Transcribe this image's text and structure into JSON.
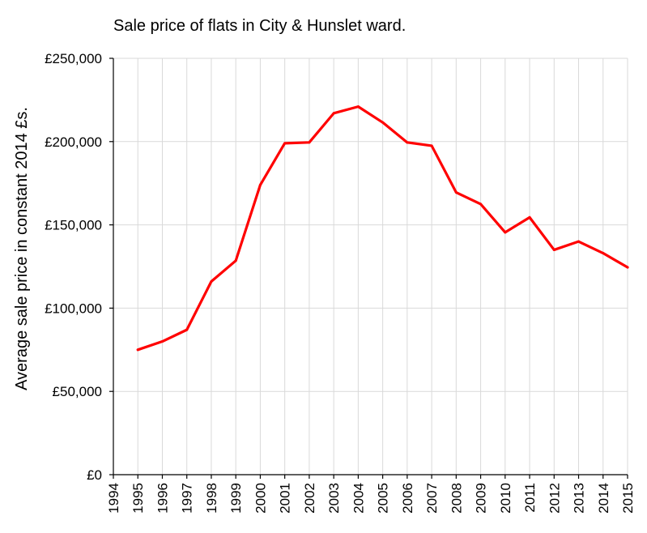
{
  "chart_data": {
    "type": "line",
    "title": "Sale price of flats in City & Hunslet ward.",
    "xlabel": "",
    "ylabel": "Average sale price in constant 2014 £s.",
    "categories": [
      "1994",
      "1995",
      "1996",
      "1997",
      "1998",
      "1999",
      "2000",
      "2001",
      "2002",
      "2003",
      "2004",
      "2005",
      "2006",
      "2007",
      "2008",
      "2009",
      "2010",
      "2011",
      "2012",
      "2013",
      "2014",
      "2015"
    ],
    "y_tick_labels": [
      "£0",
      "£50,000",
      "£100,000",
      "£150,000",
      "£200,000",
      "£250,000"
    ],
    "y_ticks": [
      0,
      50000,
      100000,
      150000,
      200000,
      250000
    ],
    "ylim": [
      0,
      250000
    ],
    "grid": true,
    "legend": "none",
    "series": [
      {
        "color": "#ff0000",
        "values": [
          null,
          75000,
          80000,
          87000,
          116000,
          128500,
          174000,
          199000,
          199500,
          217000,
          221000,
          211500,
          199500,
          197500,
          169500,
          162500,
          145500,
          154500,
          135000,
          140000,
          133000,
          124500
        ]
      }
    ]
  }
}
